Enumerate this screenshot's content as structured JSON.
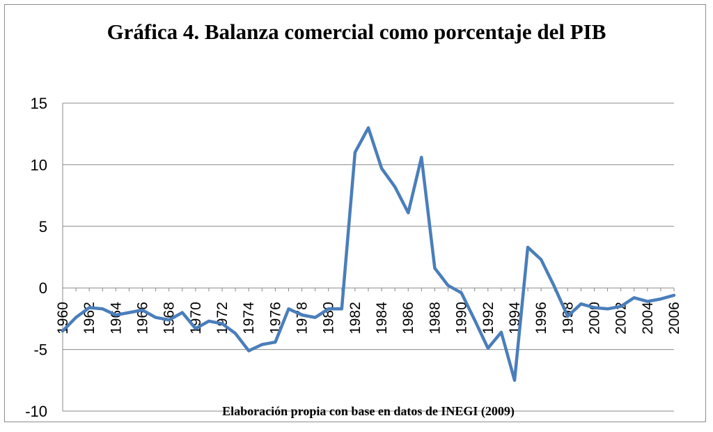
{
  "chart_data": {
    "type": "line",
    "title": "Gráfica 4. Balanza comercial como porcentaje del PIB",
    "source_note": "Elaboración propia con base en datos de INEGI (2009)",
    "xlabel": "",
    "ylabel": "",
    "ylim": [
      -10,
      15
    ],
    "yticks": [
      "15",
      "10",
      "5",
      "0",
      "-5",
      "-10"
    ],
    "xticks": [
      "1960",
      "1962",
      "1964",
      "1966",
      "1968",
      "1970",
      "1972",
      "1974",
      "1976",
      "1978",
      "1980",
      "1982",
      "1984",
      "1986",
      "1988",
      "1990",
      "1992",
      "1994",
      "1996",
      "1998",
      "2000",
      "2002",
      "2004",
      "2006"
    ],
    "grid": true,
    "legend": "none",
    "line_color": "#4a7ebb",
    "x": [
      1960,
      1961,
      1962,
      1963,
      1964,
      1965,
      1966,
      1967,
      1968,
      1969,
      1970,
      1971,
      1972,
      1973,
      1974,
      1975,
      1976,
      1977,
      1978,
      1979,
      1980,
      1981,
      1982,
      1983,
      1984,
      1985,
      1986,
      1987,
      1988,
      1989,
      1990,
      1991,
      1992,
      1993,
      1994,
      1995,
      1996,
      1997,
      1998,
      1999,
      2000,
      2001,
      2002,
      2003,
      2004,
      2005,
      2006
    ],
    "series": [
      {
        "values": [
          -3.5,
          -2.4,
          -1.6,
          -1.7,
          -2.2,
          -2.0,
          -1.8,
          -2.4,
          -2.6,
          -2.0,
          -3.3,
          -2.7,
          -2.9,
          -3.7,
          -5.1,
          -4.6,
          -4.4,
          -1.7,
          -2.2,
          -2.4,
          -1.7,
          -1.7,
          11.0,
          13.0,
          9.7,
          8.2,
          6.1,
          10.6,
          1.6,
          0.2,
          -0.4,
          -2.6,
          -4.9,
          -3.6,
          -7.5,
          3.3,
          2.3,
          0.1,
          -2.3,
          -1.3,
          -1.6,
          -1.7,
          -1.5,
          -0.8,
          -1.1,
          -0.9,
          -0.6
        ]
      }
    ]
  }
}
